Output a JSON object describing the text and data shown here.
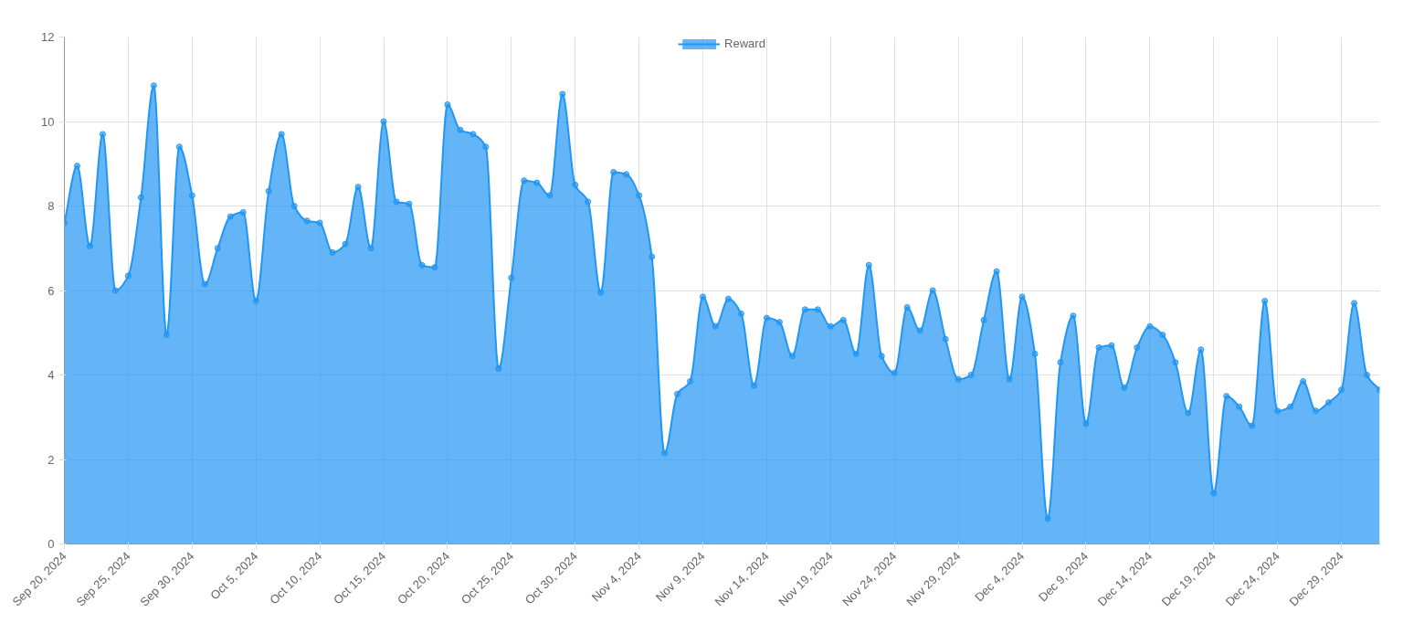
{
  "chart_data": {
    "type": "area",
    "x": [
      "2024-09-20",
      "2024-09-21",
      "2024-09-22",
      "2024-09-23",
      "2024-09-24",
      "2024-09-25",
      "2024-09-26",
      "2024-09-27",
      "2024-09-28",
      "2024-09-29",
      "2024-09-30",
      "2024-10-01",
      "2024-10-02",
      "2024-10-03",
      "2024-10-04",
      "2024-10-05",
      "2024-10-06",
      "2024-10-07",
      "2024-10-08",
      "2024-10-09",
      "2024-10-10",
      "2024-10-11",
      "2024-10-12",
      "2024-10-13",
      "2024-10-14",
      "2024-10-15",
      "2024-10-16",
      "2024-10-17",
      "2024-10-18",
      "2024-10-19",
      "2024-10-20",
      "2024-10-21",
      "2024-10-22",
      "2024-10-23",
      "2024-10-24",
      "2024-10-25",
      "2024-10-26",
      "2024-10-27",
      "2024-10-28",
      "2024-10-29",
      "2024-10-30",
      "2024-10-31",
      "2024-11-01",
      "2024-11-02",
      "2024-11-03",
      "2024-11-04",
      "2024-11-05",
      "2024-11-06",
      "2024-11-07",
      "2024-11-08",
      "2024-11-09",
      "2024-11-10",
      "2024-11-11",
      "2024-11-12",
      "2024-11-13",
      "2024-11-14",
      "2024-11-15",
      "2024-11-16",
      "2024-11-17",
      "2024-11-18",
      "2024-11-19",
      "2024-11-20",
      "2024-11-21",
      "2024-11-22",
      "2024-11-23",
      "2024-11-24",
      "2024-11-25",
      "2024-11-26",
      "2024-11-27",
      "2024-11-28",
      "2024-11-29",
      "2024-11-30",
      "2024-12-01",
      "2024-12-02",
      "2024-12-03",
      "2024-12-04",
      "2024-12-05",
      "2024-12-06",
      "2024-12-07",
      "2024-12-08",
      "2024-12-09",
      "2024-12-10",
      "2024-12-11",
      "2024-12-12",
      "2024-12-13",
      "2024-12-14",
      "2024-12-15",
      "2024-12-16",
      "2024-12-17",
      "2024-12-18",
      "2024-12-19",
      "2024-12-20",
      "2024-12-21",
      "2024-12-22",
      "2024-12-23",
      "2024-12-24",
      "2024-12-25",
      "2024-12-26",
      "2024-12-27",
      "2024-12-28",
      "2024-12-29",
      "2024-12-30",
      "2024-12-31",
      "2025-01-01"
    ],
    "series": [
      {
        "name": "Reward",
        "color": "#2196f3",
        "values": [
          7.6,
          8.95,
          7.05,
          9.7,
          6.0,
          6.35,
          8.2,
          10.85,
          4.95,
          9.4,
          8.25,
          6.15,
          7.0,
          7.75,
          7.85,
          5.75,
          8.35,
          9.7,
          8.0,
          7.65,
          7.6,
          6.9,
          7.1,
          8.45,
          7.0,
          10.0,
          8.1,
          8.05,
          6.6,
          6.55,
          10.4,
          9.8,
          9.7,
          9.4,
          4.15,
          6.3,
          8.6,
          8.55,
          8.25,
          10.65,
          8.5,
          8.1,
          5.95,
          8.8,
          8.75,
          8.25,
          6.8,
          2.15,
          3.55,
          3.85,
          5.85,
          5.15,
          5.8,
          5.45,
          3.75,
          5.35,
          5.25,
          4.45,
          5.55,
          5.55,
          5.15,
          5.3,
          4.5,
          6.6,
          4.45,
          4.05,
          5.6,
          5.05,
          6.0,
          4.85,
          3.9,
          4.0,
          5.3,
          6.45,
          3.9,
          5.85,
          4.5,
          0.6,
          4.3,
          5.4,
          2.85,
          4.65,
          4.7,
          3.7,
          4.65,
          5.15,
          4.95,
          4.3,
          3.1,
          4.6,
          1.2,
          3.5,
          3.25,
          2.8,
          5.75,
          3.15,
          3.25,
          3.85,
          3.15,
          3.35,
          3.65,
          5.7,
          4.0,
          3.65
        ]
      }
    ],
    "xlim": [
      "2024-09-20",
      "2025-01-01"
    ],
    "xticks": [
      {
        "value": "2024-09-20",
        "label": "Sep 20, 2024"
      },
      {
        "value": "2024-09-25",
        "label": "Sep 25, 2024"
      },
      {
        "value": "2024-09-30",
        "label": "Sep 30, 2024"
      },
      {
        "value": "2024-10-05",
        "label": "Oct 5, 2024"
      },
      {
        "value": "2024-10-10",
        "label": "Oct 10, 2024"
      },
      {
        "value": "2024-10-15",
        "label": "Oct 15, 2024"
      },
      {
        "value": "2024-10-20",
        "label": "Oct 20, 2024"
      },
      {
        "value": "2024-10-25",
        "label": "Oct 25, 2024"
      },
      {
        "value": "2024-10-30",
        "label": "Oct 30, 2024"
      },
      {
        "value": "2024-11-04",
        "label": "Nov 4, 2024"
      },
      {
        "value": "2024-11-09",
        "label": "Nov 9, 2024"
      },
      {
        "value": "2024-11-14",
        "label": "Nov 14, 2024"
      },
      {
        "value": "2024-11-19",
        "label": "Nov 19, 2024"
      },
      {
        "value": "2024-11-24",
        "label": "Nov 24, 2024"
      },
      {
        "value": "2024-11-29",
        "label": "Nov 29, 2024"
      },
      {
        "value": "2024-12-04",
        "label": "Dec 4, 2024"
      },
      {
        "value": "2024-12-09",
        "label": "Dec 9, 2024"
      },
      {
        "value": "2024-12-14",
        "label": "Dec 14, 2024"
      },
      {
        "value": "2024-12-19",
        "label": "Dec 19, 2024"
      },
      {
        "value": "2024-12-24",
        "label": "Dec 24, 2024"
      },
      {
        "value": "2024-12-29",
        "label": "Dec 29, 2024"
      }
    ],
    "ylim": [
      0,
      12
    ],
    "yticks": [
      0,
      2,
      4,
      6,
      8,
      10,
      12
    ],
    "grid": true,
    "legend": "top",
    "marker": "circle",
    "line_style": "solid"
  }
}
